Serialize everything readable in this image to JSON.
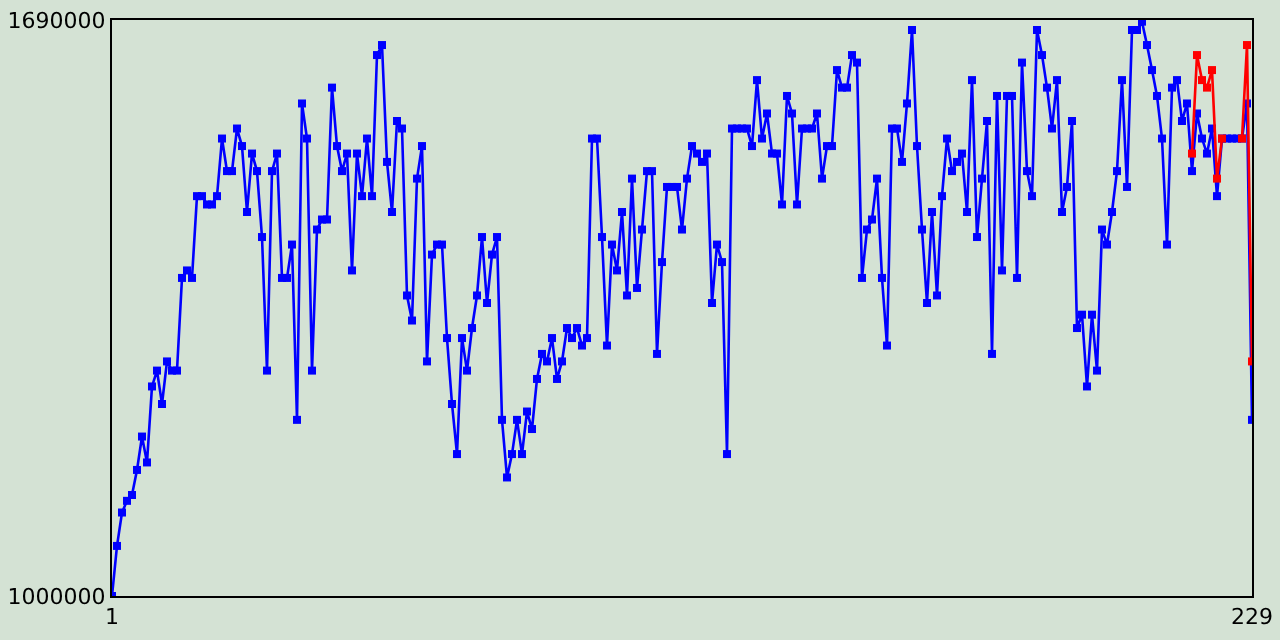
{
  "chart_data": {
    "type": "line",
    "x": [
      1,
      2,
      3,
      4,
      5,
      6,
      7,
      8,
      9,
      10,
      11,
      12,
      13,
      14,
      15,
      16,
      17,
      18,
      19,
      20,
      21,
      22,
      23,
      24,
      25,
      26,
      27,
      28,
      29,
      30,
      31,
      32,
      33,
      34,
      35,
      36,
      37,
      38,
      39,
      40,
      41,
      42,
      43,
      44,
      45,
      46,
      47,
      48,
      49,
      50,
      51,
      52,
      53,
      54,
      55,
      56,
      57,
      58,
      59,
      60,
      61,
      62,
      63,
      64,
      65,
      66,
      67,
      68,
      69,
      70,
      71,
      72,
      73,
      74,
      75,
      76,
      77,
      78,
      79,
      80,
      81,
      82,
      83,
      84,
      85,
      86,
      87,
      88,
      89,
      90,
      91,
      92,
      93,
      94,
      95,
      96,
      97,
      98,
      99,
      100,
      101,
      102,
      103,
      104,
      105,
      106,
      107,
      108,
      109,
      110,
      111,
      112,
      113,
      114,
      115,
      116,
      117,
      118,
      119,
      120,
      121,
      122,
      123,
      124,
      125,
      126,
      127,
      128,
      129,
      130,
      131,
      132,
      133,
      134,
      135,
      136,
      137,
      138,
      139,
      140,
      141,
      142,
      143,
      144,
      145,
      146,
      147,
      148,
      149,
      150,
      151,
      152,
      153,
      154,
      155,
      156,
      157,
      158,
      159,
      160,
      161,
      162,
      163,
      164,
      165,
      166,
      167,
      168,
      169,
      170,
      171,
      172,
      173,
      174,
      175,
      176,
      177,
      178,
      179,
      180,
      181,
      182,
      183,
      184,
      185,
      186,
      187,
      188,
      189,
      190,
      191,
      192,
      193,
      194,
      195,
      196,
      197,
      198,
      199,
      200,
      201,
      202,
      203,
      204,
      205,
      206,
      207,
      208,
      209,
      210,
      211,
      212,
      213,
      214,
      215,
      216,
      217,
      218,
      219,
      220,
      221,
      222,
      223,
      224,
      225,
      226,
      227,
      228,
      229
    ],
    "series": [
      {
        "color": "#0000ff",
        "values": [
          1000000,
          1060000,
          1100000,
          1114000,
          1121000,
          1151000,
          1191000,
          1160000,
          1251000,
          1270000,
          1230000,
          1281000,
          1270000,
          1270000,
          1381000,
          1390000,
          1381000,
          1479000,
          1479000,
          1469000,
          1469000,
          1479000,
          1548000,
          1509000,
          1509000,
          1560000,
          1539000,
          1460000,
          1530000,
          1509000,
          1430000,
          1270000,
          1509000,
          1530000,
          1381000,
          1381000,
          1421000,
          1211000,
          1590000,
          1548000,
          1270000,
          1439000,
          1451000,
          1451000,
          1609000,
          1539000,
          1509000,
          1530000,
          1390000,
          1530000,
          1479000,
          1548000,
          1479000,
          1648000,
          1660000,
          1520000,
          1460000,
          1569000,
          1560000,
          1360000,
          1330000,
          1500000,
          1539000,
          1281000,
          1409000,
          1421000,
          1421000,
          1309000,
          1230000,
          1170000,
          1309000,
          1270000,
          1321000,
          1360000,
          1430000,
          1351000,
          1409000,
          1430000,
          1211000,
          1142000,
          1170000,
          1211000,
          1170000,
          1221000,
          1200000,
          1260000,
          1290000,
          1281000,
          1309000,
          1260000,
          1281000,
          1321000,
          1309000,
          1321000,
          1300000,
          1309000,
          1548000,
          1548000,
          1430000,
          1300000,
          1421000,
          1390000,
          1460000,
          1360000,
          1500000,
          1369000,
          1439000,
          1509000,
          1509000,
          1290000,
          1400000,
          1490000,
          1490000,
          1490000,
          1439000,
          1500000,
          1539000,
          1530000,
          1520000,
          1530000,
          1351000,
          1421000,
          1400000,
          1170000,
          1560000,
          1560000,
          1560000,
          1560000,
          1539000,
          1618000,
          1548000,
          1578000,
          1530000,
          1530000,
          1469000,
          1599000,
          1578000,
          1469000,
          1560000,
          1560000,
          1560000,
          1578000,
          1500000,
          1539000,
          1539000,
          1630000,
          1609000,
          1609000,
          1648000,
          1639000,
          1381000,
          1439000,
          1451000,
          1500000,
          1381000,
          1300000,
          1560000,
          1560000,
          1520000,
          1590000,
          1678000,
          1539000,
          1439000,
          1351000,
          1460000,
          1360000,
          1479000,
          1548000,
          1509000,
          1520000,
          1530000,
          1460000,
          1618000,
          1430000,
          1500000,
          1569000,
          1290000,
          1599000,
          1390000,
          1599000,
          1599000,
          1381000,
          1639000,
          1509000,
          1479000,
          1678000,
          1648000,
          1609000,
          1560000,
          1618000,
          1460000,
          1490000,
          1569000,
          1321000,
          1337000,
          1251000,
          1337000,
          1270000,
          1439000,
          1421000,
          1460000,
          1509000,
          1618000,
          1490000,
          1678000,
          1678000,
          1688000,
          1660000,
          1630000,
          1599000,
          1548000,
          1421000,
          1609000,
          1618000,
          1569000,
          1590000,
          1509000,
          1578000,
          1548000,
          1530000,
          1560000,
          1479000,
          1548000,
          1548000,
          1548000,
          1548000,
          1548000,
          1590000,
          1211000
        ]
      },
      {
        "color": "#ff0000",
        "x": [
          217,
          218,
          219,
          220,
          221,
          222,
          223,
          224,
          225,
          226,
          227,
          228,
          229
        ],
        "values": [
          1530000,
          1648000,
          1618000,
          1609000,
          1630000,
          1500000,
          1548000,
          null,
          null,
          null,
          1548000,
          1660000,
          1281000
        ]
      }
    ],
    "xlim": [
      1,
      229
    ],
    "xticks": [
      1,
      229
    ],
    "ylim": [
      1000000,
      1690000
    ],
    "yticks": [
      1000000,
      1690000
    ],
    "marker": "square",
    "line_style": "solid"
  }
}
